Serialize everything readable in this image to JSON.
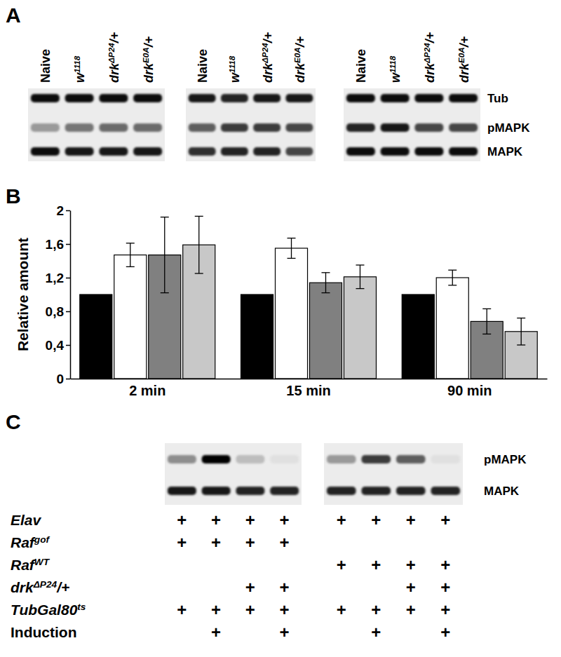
{
  "panel_labels": {
    "a": "A",
    "b": "B",
    "c": "C"
  },
  "panel_a": {
    "lanes": [
      {
        "text": "Naive"
      },
      {
        "text": "w",
        "sup": "1118"
      },
      {
        "text": "drk",
        "sup": "ΔP24",
        "tail": "/+"
      },
      {
        "text": "drk",
        "sup": "E0A",
        "tail": "/+"
      }
    ],
    "row_labels": [
      "Tub",
      "pMAPK",
      "MAPK"
    ],
    "blots": [
      [
        [
          0.95,
          0.95,
          0.95,
          0.95
        ],
        [
          0.35,
          0.5,
          0.55,
          0.55
        ],
        [
          0.95,
          0.9,
          0.9,
          0.9
        ]
      ],
      [
        [
          0.9,
          0.85,
          0.9,
          0.9
        ],
        [
          0.6,
          0.75,
          0.75,
          0.7
        ],
        [
          0.8,
          0.85,
          0.85,
          0.7
        ]
      ],
      [
        [
          0.95,
          0.95,
          0.95,
          0.95
        ],
        [
          0.85,
          0.9,
          0.7,
          0.7
        ],
        [
          0.95,
          0.95,
          0.95,
          0.95
        ]
      ]
    ]
  },
  "chart_data": {
    "type": "bar",
    "ylabel": "Relative amount",
    "categories": [
      "2 min",
      "15 min",
      "90 min"
    ],
    "series": [
      {
        "color": "#000000",
        "values": [
          1.0,
          1.0,
          1.0
        ],
        "errors": [
          null,
          null,
          null
        ]
      },
      {
        "color": "#ffffff",
        "values": [
          1.47,
          1.55,
          1.2
        ],
        "errors": [
          0.14,
          0.12,
          0.09
        ]
      },
      {
        "color": "#808080",
        "values": [
          1.47,
          1.14,
          0.68
        ],
        "errors": [
          0.45,
          0.12,
          0.15
        ]
      },
      {
        "color": "#c8c8c8",
        "values": [
          1.59,
          1.21,
          0.56
        ],
        "errors": [
          0.34,
          0.14,
          0.16
        ]
      }
    ],
    "ylim": [
      0,
      2
    ],
    "yticks": [
      0,
      {
        "value": 0.4,
        "label": "0,4"
      },
      {
        "value": 0.8,
        "label": "0,8"
      },
      {
        "value": 1.2,
        "label": "1,2"
      },
      {
        "value": 1.6,
        "label": "1,6"
      },
      2
    ],
    "grid": false
  },
  "panel_c": {
    "blot_labels": [
      "pMAPK",
      "MAPK"
    ],
    "blots": [
      [
        [
          0.4,
          1.0,
          0.2,
          0.05
        ],
        [
          0.9,
          0.9,
          0.85,
          0.85
        ]
      ],
      [
        [
          0.35,
          0.75,
          0.6,
          0.05
        ],
        [
          0.85,
          0.85,
          0.85,
          0.85
        ]
      ]
    ],
    "mark": "+",
    "rows": [
      {
        "text": "Elav",
        "cells": [
          true,
          true,
          true,
          true,
          true,
          true,
          true,
          true
        ]
      },
      {
        "text": "Raf",
        "sup": "gof",
        "cells": [
          true,
          true,
          true,
          true,
          false,
          false,
          false,
          false
        ]
      },
      {
        "text": "Raf",
        "sup": "WT",
        "cells": [
          false,
          false,
          false,
          false,
          true,
          true,
          true,
          true
        ]
      },
      {
        "text": "drk",
        "sup": "ΔP24",
        "tail": "/+",
        "cells": [
          false,
          false,
          true,
          true,
          false,
          false,
          true,
          true
        ]
      },
      {
        "text": "TubGal80",
        "sup": "ts",
        "cells": [
          true,
          true,
          true,
          true,
          true,
          true,
          true,
          true
        ]
      },
      {
        "text": "Induction",
        "cells": [
          false,
          true,
          false,
          true,
          false,
          true,
          false,
          true
        ]
      }
    ]
  }
}
